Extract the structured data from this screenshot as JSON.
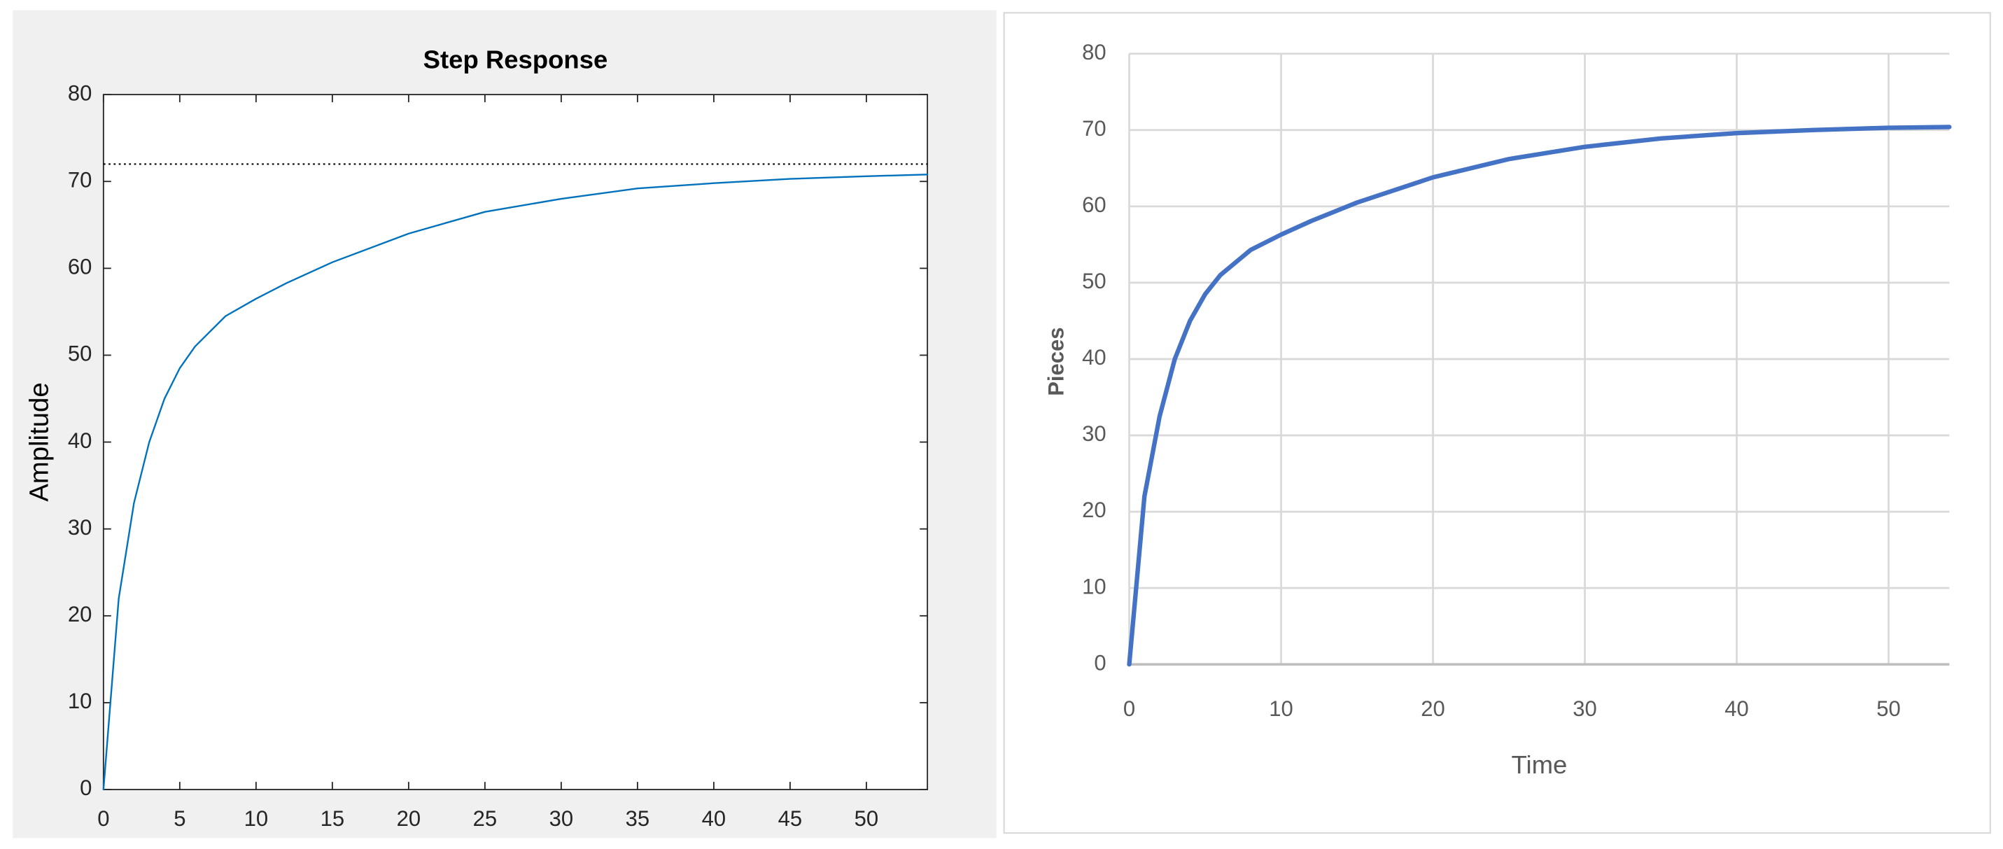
{
  "chart_data": [
    {
      "type": "line",
      "title": "Step Response",
      "ylabel": "Amplitude",
      "x": [
        0,
        1,
        2,
        3,
        4,
        5,
        6,
        8,
        10,
        12,
        15,
        20,
        25,
        30,
        35,
        40,
        45,
        50,
        54
      ],
      "series": [
        {
          "color": "#0072bd",
          "values": [
            0,
            22,
            33,
            40,
            45,
            48.5,
            51,
            54.5,
            56.5,
            58.3,
            60.7,
            64,
            66.5,
            68,
            69.2,
            69.8,
            70.3,
            70.6,
            70.8
          ]
        }
      ],
      "reference_line": 72,
      "xlim": [
        0,
        54
      ],
      "xticks": [
        0,
        5,
        10,
        15,
        20,
        25,
        30,
        35,
        40,
        45,
        50
      ],
      "ylim": [
        0,
        80
      ],
      "yticks": [
        0,
        10,
        20,
        30,
        40,
        50,
        60,
        70,
        80
      ],
      "grid": false
    },
    {
      "type": "line",
      "xlabel": "Time",
      "ylabel": "Pieces",
      "x": [
        0,
        1,
        2,
        3,
        4,
        5,
        6,
        8,
        10,
        12,
        15,
        20,
        25,
        30,
        35,
        40,
        45,
        50,
        54
      ],
      "series": [
        {
          "color": "#4472c4",
          "values": [
            0,
            22,
            32.5,
            40,
            45,
            48.5,
            51,
            54.3,
            56.3,
            58.1,
            60.5,
            63.8,
            66.2,
            67.8,
            68.9,
            69.6,
            70,
            70.3,
            70.4
          ]
        }
      ],
      "xlim": [
        0,
        54
      ],
      "xticks": [
        0,
        10,
        20,
        30,
        40,
        50
      ],
      "ylim": [
        0,
        80
      ],
      "yticks": [
        0,
        10,
        20,
        30,
        40,
        50,
        60,
        70,
        80
      ],
      "grid": true
    }
  ]
}
